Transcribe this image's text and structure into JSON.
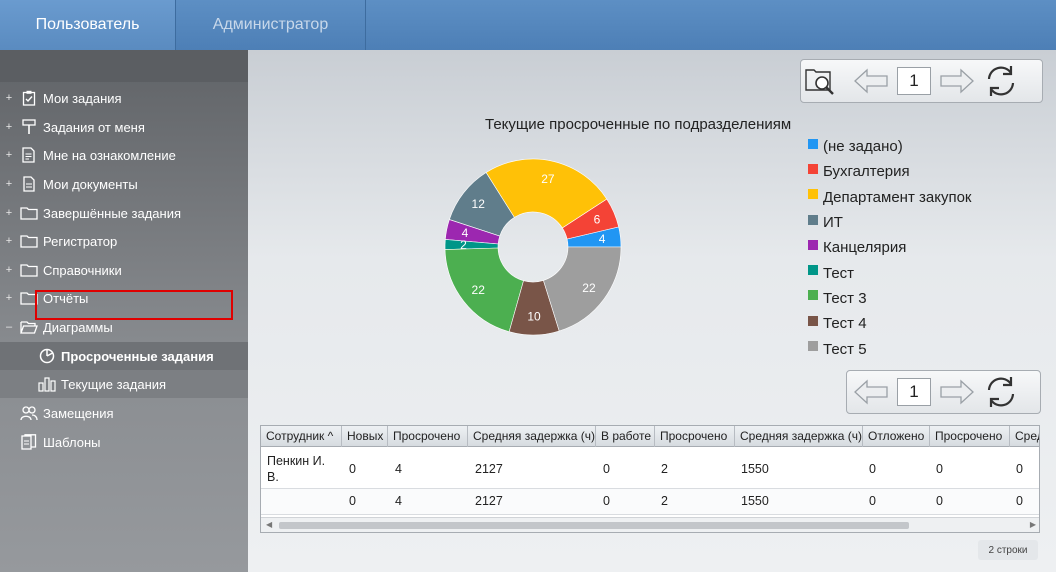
{
  "topbar": {
    "tabs": [
      {
        "label": "Пользователь",
        "active": true
      },
      {
        "label": "Администратор",
        "active": false
      }
    ]
  },
  "sidebar": {
    "items": [
      {
        "label": "Мои задания",
        "icon": "task-check-icon",
        "expander": "+"
      },
      {
        "label": "Задания от меня",
        "icon": "pin-icon",
        "expander": "+"
      },
      {
        "label": "Мне на ознакомление",
        "icon": "document-list-icon",
        "expander": "+"
      },
      {
        "label": "Мои документы",
        "icon": "document-icon",
        "expander": "+"
      },
      {
        "label": "Завершённые задания",
        "icon": "folder-icon",
        "expander": "+"
      },
      {
        "label": "Регистратор",
        "icon": "folder-icon",
        "expander": "+"
      },
      {
        "label": "Справочники",
        "icon": "folder-icon",
        "expander": "+"
      },
      {
        "label": "Отчёты",
        "icon": "folder-icon",
        "expander": "+"
      },
      {
        "label": "Диаграммы",
        "icon": "folder-open-icon",
        "expander": "–"
      },
      {
        "label": "Просроченные задания",
        "icon": "pie-chart-icon",
        "expander": ""
      },
      {
        "label": "Текущие задания",
        "icon": "bar-chart-icon",
        "expander": ""
      },
      {
        "label": "Замещения",
        "icon": "users-icon",
        "expander": ""
      },
      {
        "label": "Шаблоны",
        "icon": "templates-icon",
        "expander": ""
      }
    ]
  },
  "pager_top": {
    "page": "1"
  },
  "pager_bottom": {
    "page": "1"
  },
  "chart_data": {
    "type": "pie",
    "title": "Текущие просроченные по подразделениям",
    "categories": [
      "(не задано)",
      "Бухгалтерия",
      "Департамент закупок",
      "ИТ",
      "Канцелярия",
      "Тест",
      "Тест 3",
      "Тест 4",
      "Тест 5"
    ],
    "values": [
      4,
      6,
      27,
      12,
      4,
      2,
      22,
      10,
      22
    ],
    "colors": [
      "#2196f3",
      "#f44336",
      "#ffc107",
      "#607d8b",
      "#9c27b0",
      "#009688",
      "#4caf50",
      "#795548",
      "#9e9e9e"
    ],
    "donut": true,
    "legend": "right"
  },
  "grid": {
    "columns": [
      "Сотрудник",
      "Новых",
      "Просрочено",
      "Средняя задержка (ч)",
      "В работе",
      "Просрочено",
      "Средняя задержка (ч)",
      "Отложено",
      "Просрочено",
      "Сред"
    ],
    "sort_indicator": "^",
    "rows": [
      [
        "Пенкин И. В.",
        "0",
        "4",
        "2127",
        "0",
        "2",
        "1550",
        "0",
        "0",
        "0"
      ],
      [
        "",
        "0",
        "4",
        "2127",
        "0",
        "2",
        "1550",
        "0",
        "0",
        "0"
      ]
    ],
    "row_count": "2 строки"
  }
}
